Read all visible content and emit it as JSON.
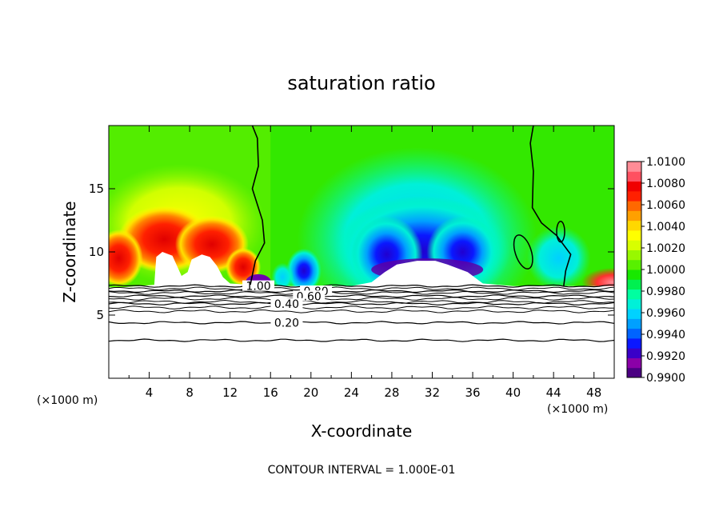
{
  "chart_data": {
    "type": "heatmap",
    "title": "saturation ratio",
    "xlabel": "X-coordinate",
    "ylabel": "Z-coordinate",
    "x_unit": "(×1000 m)",
    "y_unit": "(×1000 m)",
    "xlim": [
      0,
      50
    ],
    "ylim": [
      0,
      20
    ],
    "x_ticks": [
      4,
      8,
      12,
      16,
      20,
      24,
      28,
      32,
      36,
      40,
      44,
      48
    ],
    "y_ticks": [
      5,
      10,
      15
    ],
    "contour_interval_text": "CONTOUR INTERVAL = 1.000E-01",
    "colorbar": {
      "min": 0.99,
      "max": 1.01,
      "labels": [
        "1.0100",
        "1.0080",
        "1.0060",
        "1.0040",
        "1.0020",
        "1.0000",
        "0.9980",
        "0.9960",
        "0.9940",
        "0.9920",
        "0.9900"
      ],
      "colors": [
        "#4b0082",
        "#8b00a8",
        "#3a00c8",
        "#0a18ff",
        "#0064ff",
        "#00a0ff",
        "#00d2ff",
        "#00f0d8",
        "#00ffa0",
        "#00f050",
        "#18e800",
        "#58f000",
        "#98f800",
        "#d8ff00",
        "#ffff00",
        "#ffd800",
        "#ffa000",
        "#ff6800",
        "#ff2000",
        "#f00000",
        "#ff5060",
        "#ff8c96"
      ]
    },
    "contour_lines": [
      {
        "label": "1.00",
        "z": 7.3
      },
      {
        "label": "0.80",
        "z": 6.9
      },
      {
        "label": "0.60",
        "z": 6.5
      },
      {
        "label": "0.40",
        "z": 5.9
      },
      {
        "label": "0.20",
        "z": 4.4
      },
      {
        "label": "",
        "z": 3.0
      }
    ],
    "supersaturated_cores": [
      {
        "x": 5.5,
        "z": 11.2,
        "value": 1.008
      },
      {
        "x": 10.5,
        "z": 10.8,
        "value": 1.006
      },
      {
        "x": 13.5,
        "z": 9.0,
        "value": 1.005
      },
      {
        "x": 49.5,
        "z": 7.8,
        "value": 1.005
      }
    ],
    "subsaturated_cores": [
      {
        "x": 31,
        "z": 10.0,
        "value": 0.9915
      },
      {
        "x": 27,
        "z": 9.5,
        "value": 0.9925
      },
      {
        "x": 35,
        "z": 9.8,
        "value": 0.992
      },
      {
        "x": 19,
        "z": 8.2,
        "value": 0.9935
      }
    ]
  }
}
